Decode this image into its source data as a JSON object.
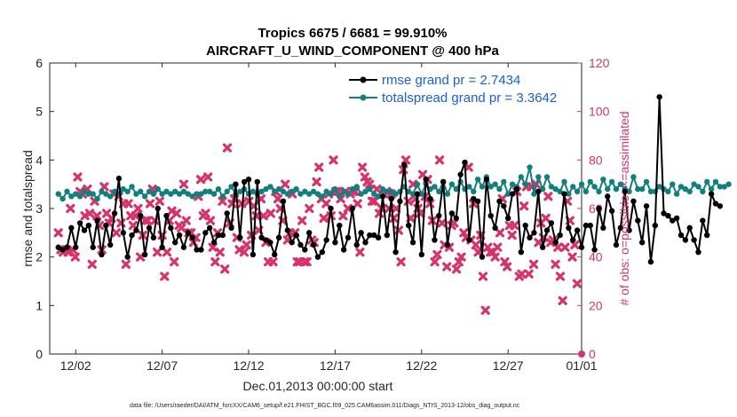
{
  "chart_data": {
    "type": "line",
    "title_line1": "Tropics 6675 / 6681 = 99.910%",
    "title_line2": "AIRCRAFT_U_WIND_COMPONENT @ 400 hPa",
    "xlabel": "Dec.01,2013 00:00:00 start",
    "ylabel_left": "rmse and totalspread",
    "ylabel_right": "# of obs: o=possible; ×=assimilated",
    "footnote": "data file: /Users/raeder/DAI/ATM_forcXX/CAM6_setup/f.e21.FHIST_BGC.f09_025.CAM6assim.011/Diags_NTrS_2013-12/obs_diag_output.nc",
    "xlim": [
      0.5,
      31.25
    ],
    "ylim_left": [
      0,
      6
    ],
    "ylim_right": [
      0,
      120
    ],
    "x_ticks": [
      {
        "day": 2,
        "label": "12/02"
      },
      {
        "day": 7,
        "label": "12/07"
      },
      {
        "day": 12,
        "label": "12/12"
      },
      {
        "day": 17,
        "label": "12/17"
      },
      {
        "day": 22,
        "label": "12/22"
      },
      {
        "day": 27,
        "label": "12/27"
      },
      {
        "day": 32,
        "label": "01/01"
      }
    ],
    "y_ticks_left": [
      0,
      1,
      2,
      3,
      4,
      5,
      6
    ],
    "y_ticks_right": [
      0,
      20,
      40,
      60,
      80,
      100,
      120
    ],
    "x_start": 1.0,
    "x_step": 0.25,
    "series": [
      {
        "name": "rmse grand pr = 2.7434",
        "color": "#000000",
        "axis": "left",
        "values": [
          2.2,
          2.15,
          2.2,
          2.6,
          2.2,
          2.7,
          2.55,
          2.65,
          2.2,
          2.75,
          2.05,
          2.65,
          2.25,
          2.9,
          3.62,
          2.5,
          2.0,
          2.45,
          2.55,
          2.85,
          2.05,
          2.6,
          2.4,
          3.0,
          2.2,
          2.85,
          2.6,
          2.3,
          2.45,
          2.2,
          2.5,
          2.4,
          2.15,
          2.15,
          2.5,
          2.6,
          2.3,
          2.45,
          2.45,
          2.9,
          2.6,
          3.5,
          2.4,
          3.55,
          3.6,
          2.05,
          3.55,
          2.4,
          2.35,
          2.3,
          2.05,
          2.4,
          3.15,
          2.55,
          2.3,
          2.45,
          2.25,
          2.15,
          2.5,
          2.25,
          2.0,
          2.1,
          2.35,
          3.0,
          2.3,
          2.65,
          2.15,
          2.4,
          3.0,
          2.25,
          2.5,
          2.3,
          2.45,
          2.45,
          2.4,
          3.25,
          2.45,
          3.2,
          2.1,
          3.15,
          3.9,
          2.65,
          2.3,
          3.3,
          2.05,
          3.6,
          3.2,
          2.35,
          2.85,
          3.55,
          2.25,
          2.9,
          2.8,
          3.7,
          3.95,
          2.35,
          3.2,
          3.15,
          2.0,
          3.6,
          2.85,
          2.6,
          3.15,
          3.05,
          2.8,
          3.3,
          3.4,
          2.1,
          2.65,
          2.4,
          2.5,
          3.35,
          2.2,
          2.55,
          2.7,
          2.3,
          2.45,
          3.3,
          2.6,
          2.35,
          2.55,
          2.2,
          2.65,
          2.65,
          2.15,
          3.0,
          2.6,
          3.25,
          2.95,
          2.25,
          2.6,
          3.35,
          2.55,
          3.15,
          2.75,
          2.3,
          3.05,
          1.9,
          2.65,
          5.3,
          2.9,
          2.85,
          2.75,
          2.8,
          2.45,
          2.35,
          2.6,
          2.35,
          2.1,
          2.75,
          2.45,
          3.3,
          3.1,
          3.05
        ]
      },
      {
        "name": "totalspread grand pr = 3.3642",
        "color": "#127f7f",
        "axis": "left",
        "values": [
          3.3,
          3.2,
          3.35,
          3.25,
          3.3,
          3.25,
          3.35,
          3.3,
          3.3,
          3.2,
          3.35,
          3.3,
          3.25,
          3.35,
          3.3,
          3.4,
          3.35,
          3.45,
          3.3,
          3.35,
          3.25,
          3.35,
          3.3,
          3.4,
          3.3,
          3.35,
          3.3,
          3.35,
          3.3,
          3.35,
          3.3,
          3.25,
          3.3,
          3.3,
          3.35,
          3.35,
          3.3,
          3.4,
          3.25,
          3.35,
          3.45,
          3.3,
          3.35,
          3.4,
          3.3,
          3.35,
          3.3,
          3.35,
          3.4,
          3.45,
          3.35,
          3.4,
          3.35,
          3.3,
          3.35,
          3.4,
          3.3,
          3.35,
          3.3,
          3.35,
          3.3,
          3.25,
          3.35,
          3.3,
          3.4,
          3.25,
          3.35,
          3.3,
          3.4,
          3.45,
          3.3,
          3.35,
          3.4,
          3.3,
          3.25,
          3.4,
          3.35,
          3.35,
          3.3,
          3.35,
          3.45,
          3.35,
          3.3,
          3.5,
          3.3,
          3.5,
          3.4,
          3.45,
          3.35,
          3.55,
          3.3,
          3.5,
          3.4,
          3.55,
          3.4,
          3.45,
          3.35,
          3.6,
          3.45,
          3.65,
          3.45,
          3.5,
          3.4,
          3.55,
          3.3,
          3.5,
          3.45,
          3.65,
          3.5,
          3.85,
          3.3,
          3.65,
          3.4,
          3.65,
          3.45,
          3.4,
          3.35,
          3.55,
          3.3,
          3.45,
          3.35,
          3.5,
          3.35,
          3.55,
          3.45,
          3.35,
          3.6,
          3.4,
          3.55,
          3.4,
          3.5,
          3.4,
          3.35,
          3.65,
          3.4,
          3.4,
          3.55,
          3.35,
          3.35,
          3.45,
          3.4,
          3.35,
          3.5,
          3.3,
          3.45,
          3.4,
          3.35,
          3.5,
          3.45,
          3.35,
          3.55,
          3.4,
          3.55,
          3.45,
          3.45,
          3.5
        ]
      },
      {
        "name": "# obs assimilated",
        "color": "#d6336c",
        "axis": "right",
        "marker": "x",
        "values": [
          50,
          43,
          42,
          43,
          42,
          60,
          43,
          40,
          73,
          67,
          66,
          57,
          68,
          58,
          37,
          63,
          57,
          53,
          43,
          69,
          58,
          54,
          56,
          66,
          50,
          65,
          54,
          62,
          37,
          62,
          57,
          53,
          57,
          60,
          40,
          49,
          55,
          55,
          62,
          68,
          55,
          42,
          63,
          49,
          32,
          42,
          55,
          59,
          38,
          58,
          53,
          52,
          70,
          55,
          50,
          50,
          46,
          48,
          65,
          72,
          57,
          58,
          73,
          55,
          44,
          38,
          50,
          42,
          63,
          35,
          85,
          54,
          62,
          64,
          48,
          43,
          62,
          42,
          45,
          63,
          49,
          61,
          57,
          51,
          64,
          57,
          46,
          38,
          58,
          38,
          67,
          64,
          60,
          55,
          70,
          47,
          50,
          66,
          50,
          38,
          38,
          55,
          38,
          38,
          60,
          47,
          46,
          71,
          77,
          64,
          56,
          62,
          66,
          57,
          80,
          67,
          67,
          64,
          57,
          67,
          60,
          66,
          67,
          67,
          62,
          42,
          77,
          73,
          71,
          70,
          63,
          63,
          68,
          58,
          60,
          66,
          67,
          60,
          66,
          56,
          60,
          51,
          38,
          76,
          80,
          63,
          56,
          70,
          64,
          60,
          58,
          74,
          65,
          72,
          62,
          55,
          38,
          41,
          80,
          54,
          45,
          36,
          44,
          53,
          54,
          35,
          38,
          40,
          50,
          48,
          77,
          47,
          62,
          45,
          42,
          49,
          32,
          18,
          44,
          42,
          42,
          40,
          44,
          50,
          64,
          38,
          36,
          53,
          49,
          53,
          67,
          32,
          33,
          61,
          69,
          33,
          69,
          37,
          70,
          46,
          54,
          48,
          56,
          65,
          46,
          47,
          37,
          44,
          32,
          22,
          44,
          63,
          55,
          40,
          45,
          29
        ]
      }
    ],
    "assim_x_step": 0.1395,
    "legend": [
      {
        "label": "rmse grand pr = 2.7434",
        "color": "#000000"
      },
      {
        "label": "totalspread grand pr = 3.3642",
        "color": "#127f7f"
      }
    ]
  }
}
